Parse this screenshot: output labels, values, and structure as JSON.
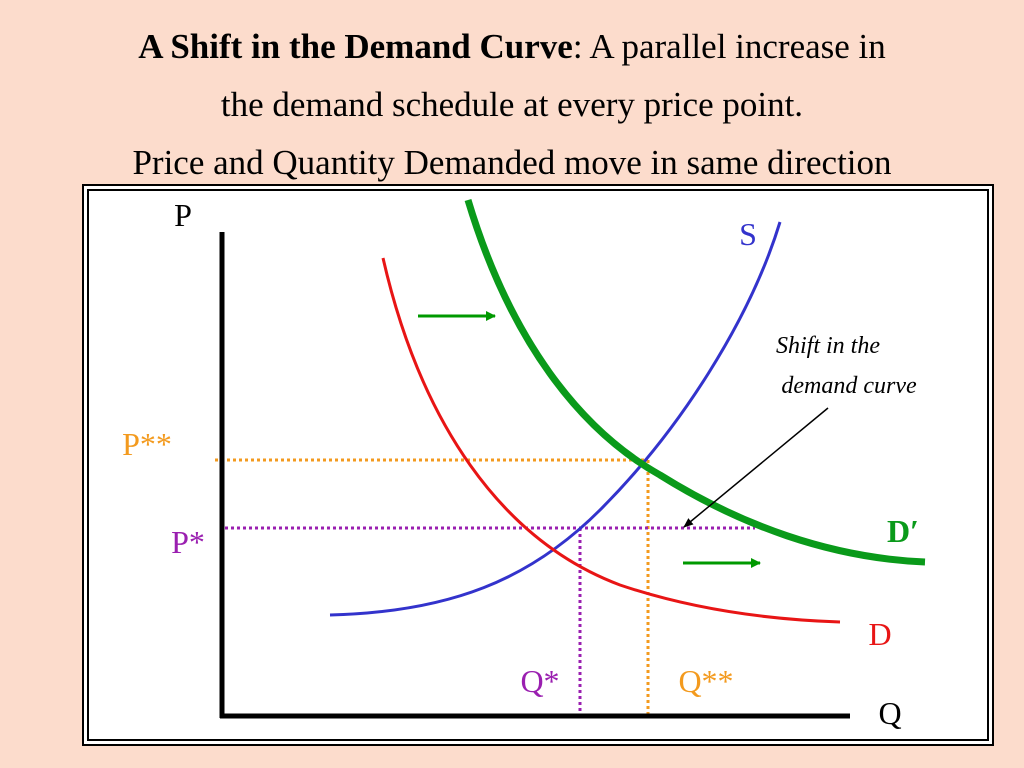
{
  "header": {
    "title_bold": "A Shift in the Demand Curve",
    "title_line1_rest": ": A parallel increase in",
    "title_line2": "the demand schedule at every price point.",
    "title_line3": "Price and Quantity Demanded move in same direction"
  },
  "diagram": {
    "axis_price": "P",
    "axis_quantity": "Q",
    "supply_label": "S",
    "demand_label": "D",
    "new_demand_label": "D′",
    "price_new": "P**",
    "price_old": "P*",
    "quantity_old": "Q*",
    "quantity_new": "Q**",
    "annotation": [
      "Shift in the",
      "demand curve"
    ]
  }
}
